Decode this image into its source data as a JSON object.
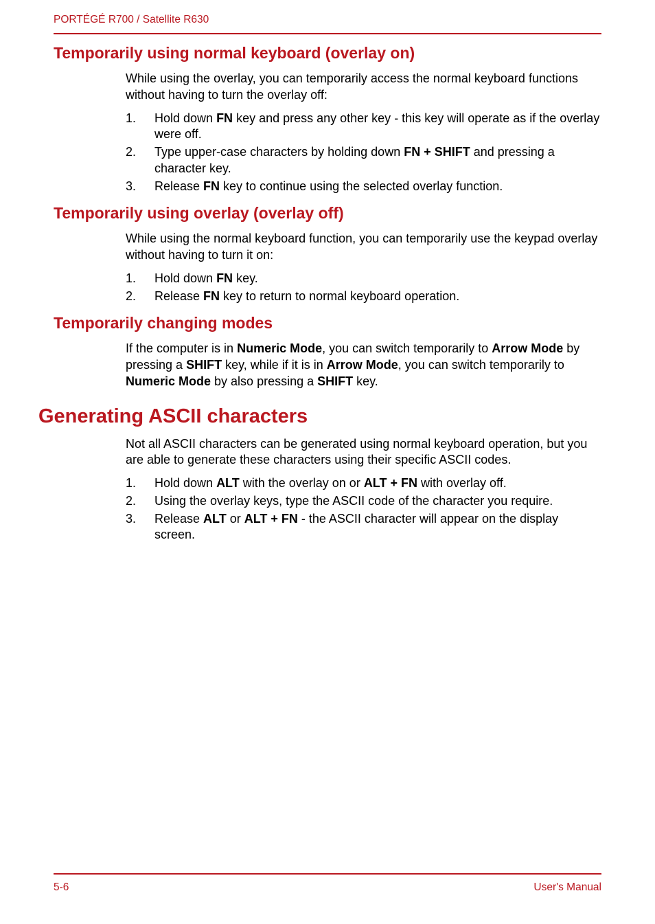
{
  "colors": {
    "accent": "#ba1820",
    "text": "#000000",
    "background": "#ffffff"
  },
  "typography": {
    "body_font": "Arial",
    "heading_font": "Arial Black",
    "body_size_pt": 13.5,
    "h2_size_pt": 17,
    "h1_size_pt": 22
  },
  "header": {
    "title": "PORTÉGÉ R700 / Satellite R630"
  },
  "sections": [
    {
      "heading": "Temporarily using normal keyboard (overlay on)",
      "level": 2,
      "intro": "While using the overlay, you can temporarily access the normal keyboard functions without having to turn the overlay off:",
      "steps": [
        {
          "num": "1.",
          "parts": [
            "Hold down ",
            {
              "b": "FN"
            },
            " key and press any other key - this key will operate as if the overlay were off."
          ]
        },
        {
          "num": "2.",
          "parts": [
            "Type upper-case characters by holding down ",
            {
              "b": "FN + SHIFT"
            },
            " and pressing a character key."
          ]
        },
        {
          "num": "3.",
          "parts": [
            "Release ",
            {
              "b": "FN"
            },
            " key to continue using the selected overlay function."
          ]
        }
      ]
    },
    {
      "heading": "Temporarily using overlay (overlay off)",
      "level": 2,
      "intro": "While using the normal keyboard function, you can temporarily use the keypad overlay without having to turn it on:",
      "steps": [
        {
          "num": "1.",
          "parts": [
            "Hold down ",
            {
              "b": "FN"
            },
            " key."
          ]
        },
        {
          "num": "2.",
          "parts": [
            "Release ",
            {
              "b": "FN"
            },
            " key to return to normal keyboard operation."
          ]
        }
      ]
    },
    {
      "heading": "Temporarily changing modes",
      "level": 2,
      "body_parts": [
        "If the computer is in ",
        {
          "b": "Numeric Mode"
        },
        ", you can switch temporarily to ",
        {
          "b": "Arrow Mode"
        },
        " by pressing a ",
        {
          "b": "SHIFT"
        },
        " key, while if it is in ",
        {
          "b": "Arrow Mode"
        },
        ", you can switch temporarily to ",
        {
          "b": "Numeric Mode"
        },
        " by also pressing a ",
        {
          "b": "SHIFT"
        },
        " key."
      ]
    },
    {
      "heading": "Generating ASCII characters",
      "level": 1,
      "intro": "Not all ASCII characters can be generated using normal keyboard operation, but you are able to generate these characters using their specific ASCII codes.",
      "steps": [
        {
          "num": "1.",
          "parts": [
            "Hold down ",
            {
              "b": "ALT"
            },
            " with the overlay on or ",
            {
              "b": "ALT + FN"
            },
            " with overlay off."
          ]
        },
        {
          "num": "2.",
          "parts": [
            "Using the overlay keys, type the ASCII code of the character you require."
          ]
        },
        {
          "num": "3.",
          "parts": [
            "Release ",
            {
              "b": "ALT"
            },
            " or ",
            {
              "b": "ALT + FN"
            },
            " - the ASCII character will appear on the display screen."
          ]
        }
      ]
    }
  ],
  "footer": {
    "left": "5-6",
    "right": "User's Manual"
  }
}
